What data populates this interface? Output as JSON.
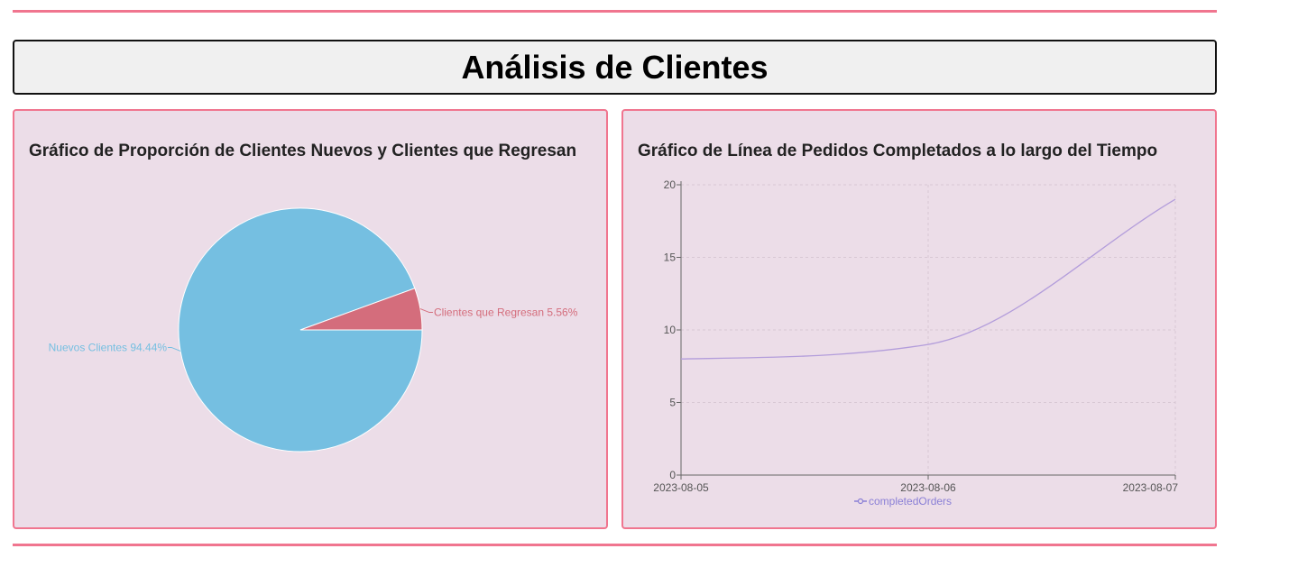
{
  "page": {
    "title": "Análisis de Clientes"
  },
  "colors": {
    "accent_border": "#f0758f",
    "card_background": "#ecdde8",
    "header_background": "#f0f0f0"
  },
  "pie_card": {
    "title": "Gráfico de Proporción de Clientes Nuevos y Clientes que Regresan"
  },
  "line_card": {
    "title": "Gráfico de Línea de Pedidos Completados a lo largo del Tiempo"
  },
  "chart_data": [
    {
      "type": "pie",
      "title": "Gráfico de Proporción de Clientes Nuevos y Clientes que Regresan",
      "slices": [
        {
          "name": "Nuevos Clientes",
          "value": 94.44,
          "label": "Nuevos Clientes 94.44%",
          "color": "#75bfe1"
        },
        {
          "name": "Clientes que Regresan",
          "value": 5.56,
          "label": "Clientes que Regresan 5.56%",
          "color": "#d46d7c"
        }
      ]
    },
    {
      "type": "line",
      "title": "Gráfico de Línea de Pedidos Completados a lo largo del Tiempo",
      "x": [
        "2023-08-05",
        "2023-08-06",
        "2023-08-07"
      ],
      "series": [
        {
          "name": "completedOrders",
          "values": [
            8,
            9,
            19
          ],
          "color": "#b39ddb"
        }
      ],
      "ylim": [
        0,
        20
      ],
      "yticks": [
        0,
        5,
        10,
        15,
        20
      ],
      "grid": true,
      "legend": "bottom",
      "legend_color": "#8a7fd6"
    }
  ]
}
